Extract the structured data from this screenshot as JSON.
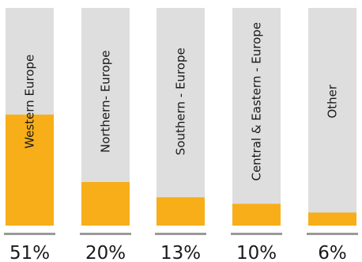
{
  "chart_data": {
    "type": "bar",
    "title": "",
    "xlabel": "",
    "ylabel": "",
    "ylim": [
      0,
      100
    ],
    "grid": false,
    "legend": "none",
    "categories": [
      "Western Europe",
      "Northern- Europe",
      "Southern - Europe",
      "Central & Eastern - Europe",
      "Other"
    ],
    "values": [
      51,
      20,
      13,
      10,
      6
    ],
    "value_labels": [
      "51%",
      "20%",
      "13%",
      "10%",
      "6%"
    ],
    "colors": {
      "background_bar": "#dedede",
      "value_bar": "#f7ae19",
      "baseline": "#9a9a9a",
      "text": "#1a1a1a"
    }
  }
}
